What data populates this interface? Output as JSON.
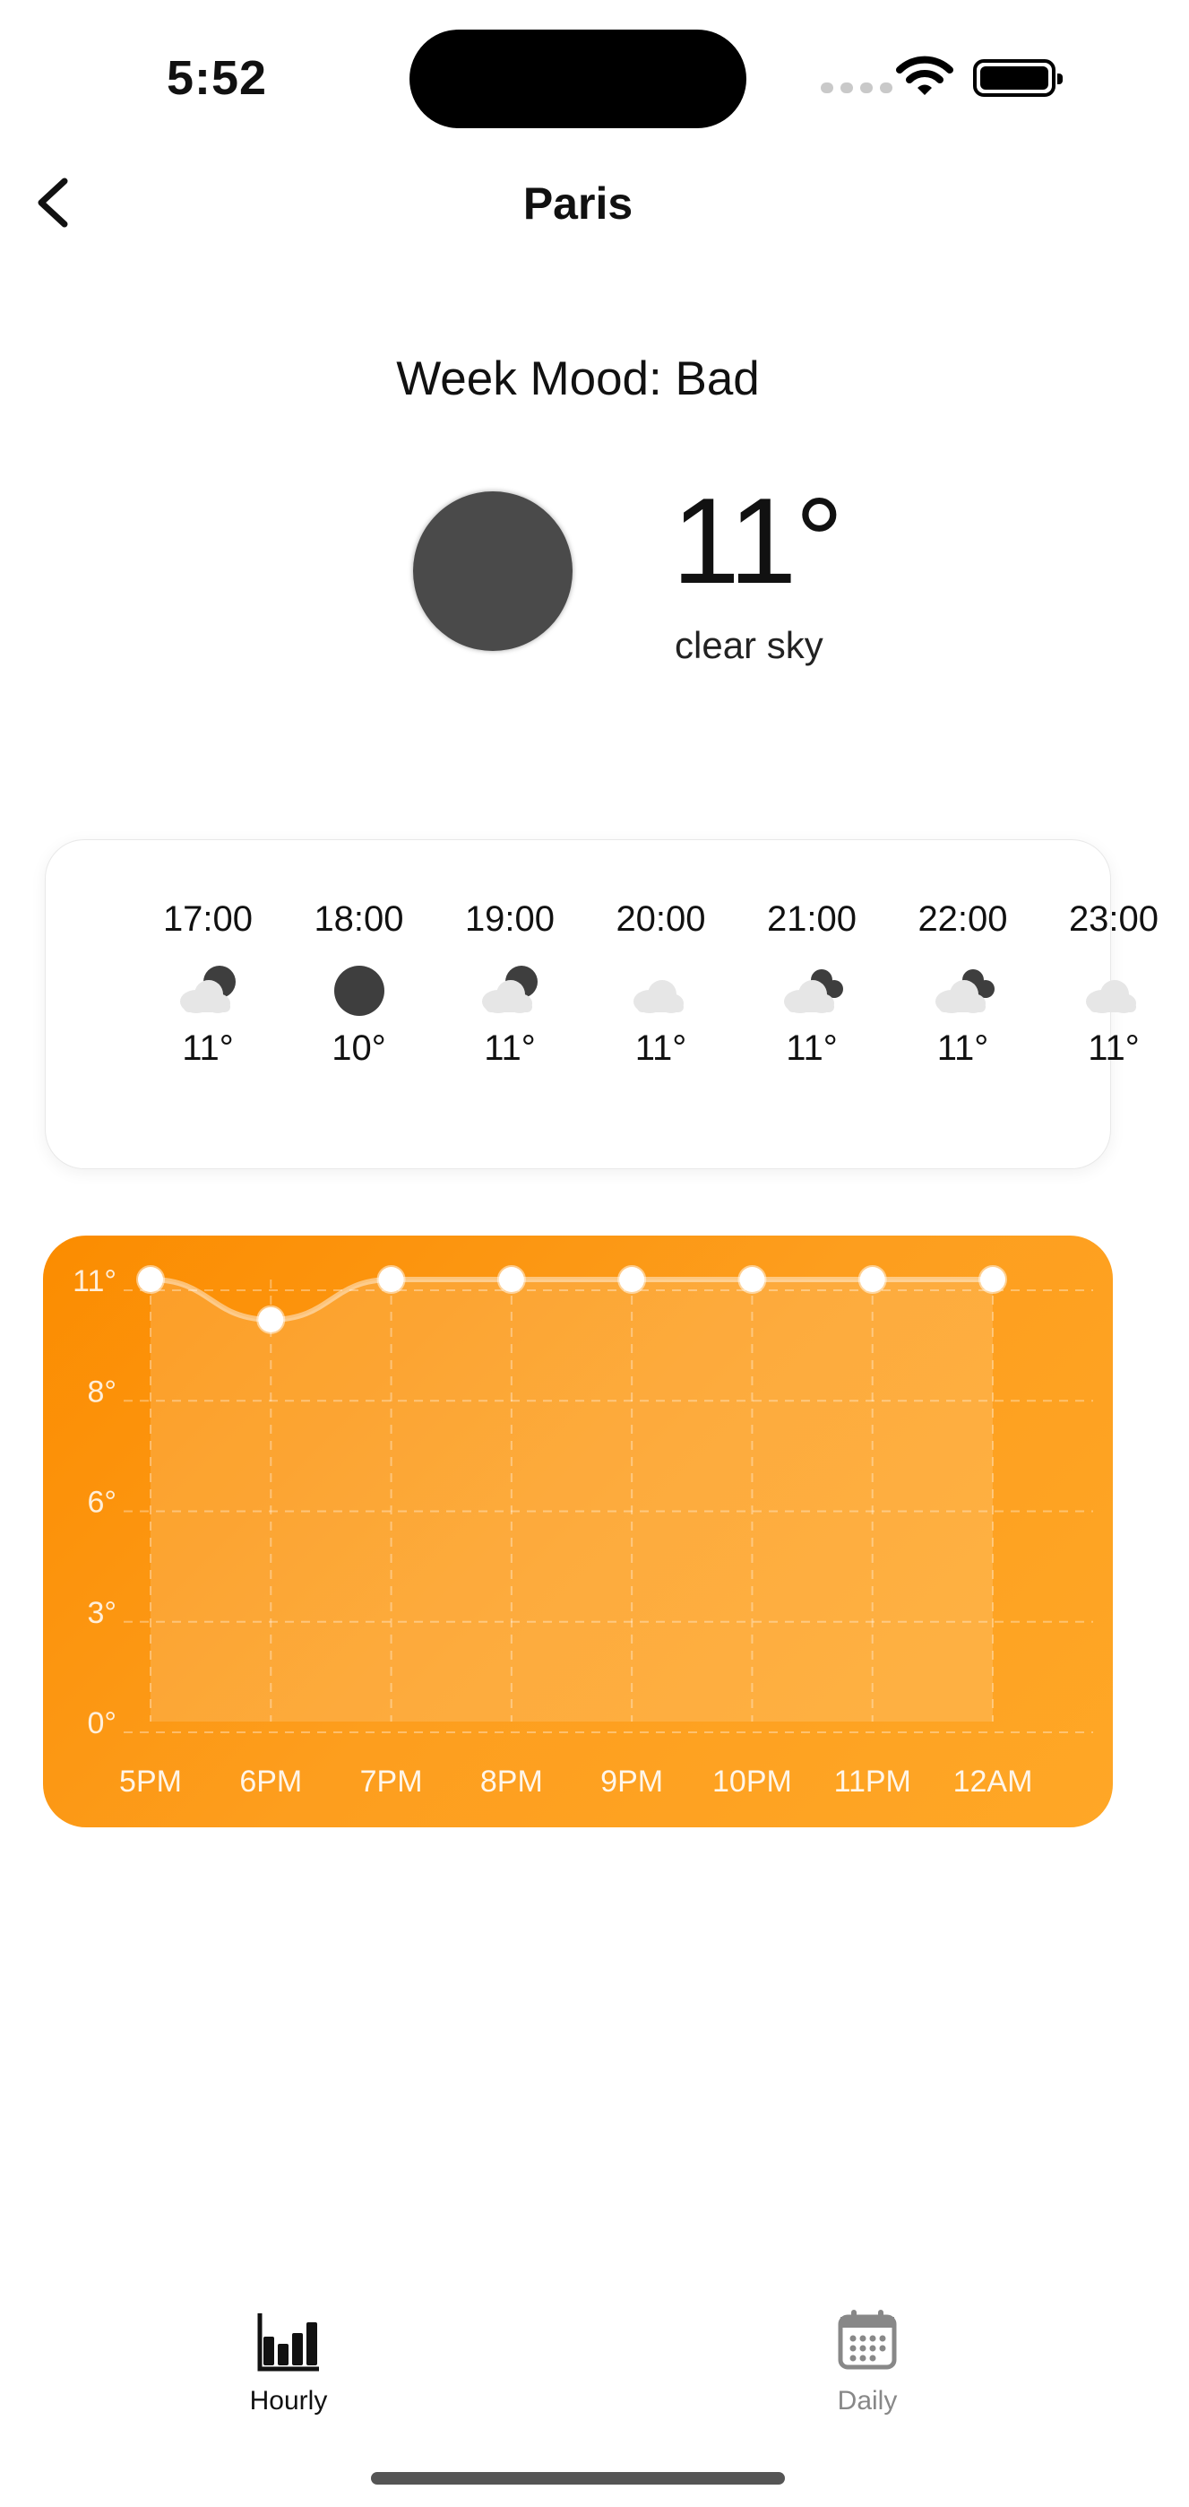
{
  "status": {
    "time": "5:52"
  },
  "header": {
    "title": "Paris",
    "back_icon": "chevron-left-icon"
  },
  "summary": {
    "mood": "Week Mood: Bad",
    "icon": "moon-icon",
    "temperature": "11°",
    "description": "clear sky"
  },
  "hourly": [
    {
      "time": "17:00",
      "icon": "cloud-moon-icon",
      "temp": "11°"
    },
    {
      "time": "18:00",
      "icon": "moon-icon",
      "temp": "10°"
    },
    {
      "time": "19:00",
      "icon": "cloud-moon-icon",
      "temp": "11°"
    },
    {
      "time": "20:00",
      "icon": "cloud-icon",
      "temp": "11°"
    },
    {
      "time": "21:00",
      "icon": "broken-clouds-icon",
      "temp": "11°"
    },
    {
      "time": "22:00",
      "icon": "broken-clouds-icon",
      "temp": "11°"
    },
    {
      "time": "23:00",
      "icon": "cloud-icon",
      "temp": "11°"
    }
  ],
  "chart_data": {
    "type": "area",
    "categories": [
      "5PM",
      "6PM",
      "7PM",
      "8PM",
      "9PM",
      "10PM",
      "11PM",
      "12AM"
    ],
    "values": [
      11,
      10,
      11,
      11,
      11,
      11,
      11,
      11
    ],
    "y_ticks": [
      "11°",
      "8°",
      "6°",
      "3°",
      "0°"
    ],
    "ylim": [
      0,
      11
    ],
    "grid": true,
    "colors": {
      "start": "#fb8c00",
      "end": "#ffa726",
      "line": "#ffffff"
    }
  },
  "tabs": [
    {
      "label": "Hourly",
      "icon": "bar-chart-icon",
      "active": true
    },
    {
      "label": "Daily",
      "icon": "calendar-icon",
      "active": false
    }
  ]
}
